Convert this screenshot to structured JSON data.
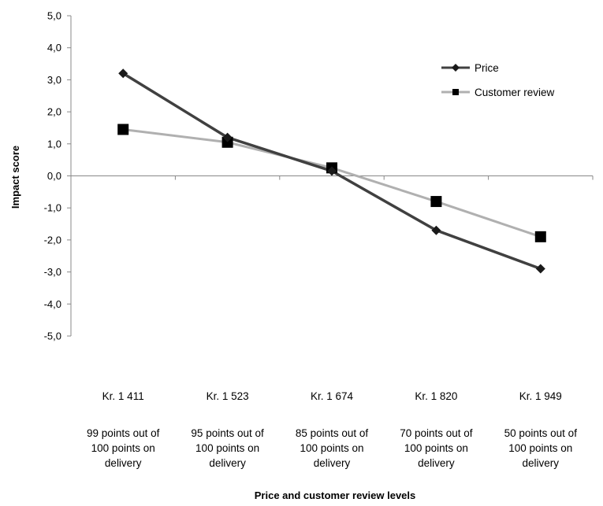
{
  "chart_data": {
    "type": "line",
    "ylabel": "Impact score",
    "xlabel": "Price and customer review levels",
    "ylim": [
      -5,
      5
    ],
    "y_ticks": [
      "5,0",
      "4,0",
      "3,0",
      "2,0",
      "1,0",
      "0,0",
      "-1,0",
      "-2,0",
      "-3,0",
      "-4,0",
      "-5,0"
    ],
    "categories": [
      {
        "price": "Kr. 1 411",
        "review": [
          "99 points out of",
          "100 points on",
          "delivery"
        ]
      },
      {
        "price": "Kr. 1 523",
        "review": [
          "95 points out of",
          "100 points on",
          "delivery"
        ]
      },
      {
        "price": "Kr. 1 674",
        "review": [
          "85 points out of",
          "100 points on",
          "delivery"
        ]
      },
      {
        "price": "Kr. 1 820",
        "review": [
          "70 points out of",
          "100 points on",
          "delivery"
        ]
      },
      {
        "price": "Kr. 1 949",
        "review": [
          "50 points out of",
          "100 points on",
          "delivery"
        ]
      }
    ],
    "series": [
      {
        "name": "Price",
        "values": [
          3.2,
          1.2,
          0.15,
          -1.7,
          -2.9
        ],
        "color": "#404040",
        "marker": "diamond"
      },
      {
        "name": "Customer review",
        "values": [
          1.45,
          1.05,
          0.25,
          -0.8,
          -1.9
        ],
        "color": "#b0b0b0",
        "marker": "square"
      }
    ],
    "grid": false,
    "legend": "top-right"
  }
}
